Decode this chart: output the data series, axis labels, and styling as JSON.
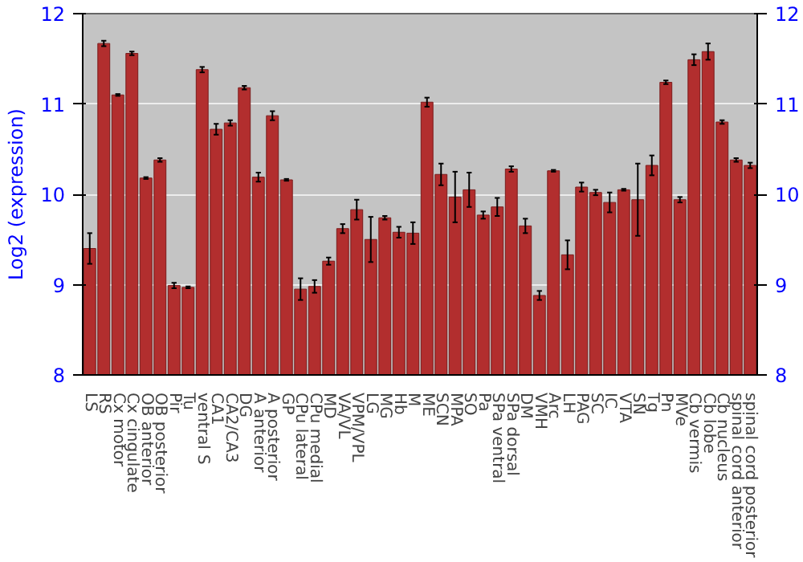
{
  "chart_data": {
    "type": "bar",
    "ylabel": "Log2 (expression)",
    "categories": [
      "LS",
      "RS",
      "Cx motor",
      "Cx cingulate",
      "OB anterior",
      "OB posterior",
      "Pir",
      "Tu",
      "ventral S",
      "CA1",
      "CA2/CA3",
      "DG",
      "A anterior",
      "A posterior",
      "GP",
      "CPu lateral",
      "CPu medial",
      "MD",
      "VA/VL",
      "VPM/VPL",
      "LG",
      "MG",
      "Hb",
      "M",
      "ME",
      "SCN",
      "MPA",
      "SO",
      "Pa",
      "SPa ventral",
      "SPa dorsal",
      "DM",
      "VMH",
      "Arc",
      "LH",
      "PAG",
      "SC",
      "IC",
      "VTA",
      "SN",
      "Tg",
      "Pn",
      "MVe",
      "Cb vermis",
      "Cb lobe",
      "Cb nucleus",
      "spinal cord anterior",
      "spinal cord posterior"
    ],
    "values": [
      9.4,
      11.67,
      11.1,
      11.56,
      10.18,
      10.38,
      8.99,
      8.97,
      11.38,
      10.72,
      10.79,
      11.18,
      10.19,
      10.87,
      10.16,
      8.95,
      8.98,
      9.26,
      9.62,
      9.83,
      9.5,
      9.74,
      9.58,
      9.57,
      11.02,
      10.22,
      9.97,
      10.05,
      9.77,
      9.86,
      10.28,
      9.65,
      8.88,
      10.26,
      9.33,
      10.08,
      10.02,
      9.91,
      10.05,
      9.94,
      10.32,
      11.24,
      9.94,
      11.49,
      11.58,
      10.8,
      10.38,
      10.32
    ],
    "errors": [
      0.17,
      0.03,
      0.01,
      0.02,
      0.01,
      0.02,
      0.03,
      0.01,
      0.03,
      0.06,
      0.03,
      0.02,
      0.05,
      0.05,
      0.01,
      0.12,
      0.07,
      0.04,
      0.05,
      0.11,
      0.25,
      0.02,
      0.06,
      0.12,
      0.05,
      0.12,
      0.28,
      0.19,
      0.04,
      0.1,
      0.03,
      0.08,
      0.05,
      0.01,
      0.16,
      0.05,
      0.03,
      0.11,
      0.01,
      0.4,
      0.11,
      0.02,
      0.03,
      0.06,
      0.09,
      0.02,
      0.02,
      0.03
    ],
    "color": "#b22e2e",
    "ylim": [
      8,
      12
    ],
    "yticks": [
      8,
      9,
      10,
      11,
      12
    ],
    "y2lim": [
      8,
      12
    ],
    "y2ticks": [
      8,
      9,
      10,
      11,
      12
    ],
    "grid": "y"
  }
}
